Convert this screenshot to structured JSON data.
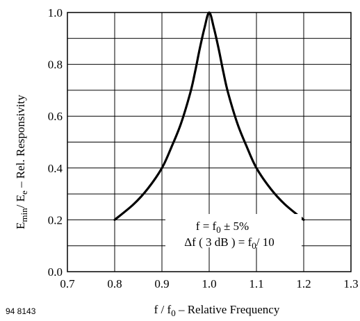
{
  "chart_data": {
    "type": "line",
    "xlabel": "f / f0 – Relative Frequency",
    "ylabel": "Emin / Ee  – Rel. Responsivity",
    "xlim": [
      0.7,
      1.3
    ],
    "ylim": [
      0.0,
      1.0
    ],
    "x_ticks": [
      "0.7",
      "0.8",
      "0.9",
      "1.0",
      "1.1",
      "1.2",
      "1.3"
    ],
    "y_ticks": [
      "0.0",
      "0.2",
      "0.4",
      "0.6",
      "0.8",
      "1.0"
    ],
    "grid": true,
    "series": [
      {
        "x": [
          0.8,
          0.84,
          0.87,
          0.9,
          0.92,
          0.94,
          0.96,
          0.97,
          0.98,
          0.99,
          1.0,
          1.01,
          1.02,
          1.03,
          1.04,
          1.06,
          1.08,
          1.1,
          1.13,
          1.16,
          1.2
        ],
        "y": [
          0.2,
          0.26,
          0.32,
          0.4,
          0.48,
          0.57,
          0.69,
          0.77,
          0.86,
          0.94,
          1.0,
          0.94,
          0.86,
          0.77,
          0.69,
          0.57,
          0.48,
          0.4,
          0.32,
          0.26,
          0.2
        ]
      }
    ],
    "annotations": [
      "f = f0 ± 5%",
      "Δf ( 3 dB ) = f0 / 10"
    ],
    "figure_code": "94 8143"
  }
}
